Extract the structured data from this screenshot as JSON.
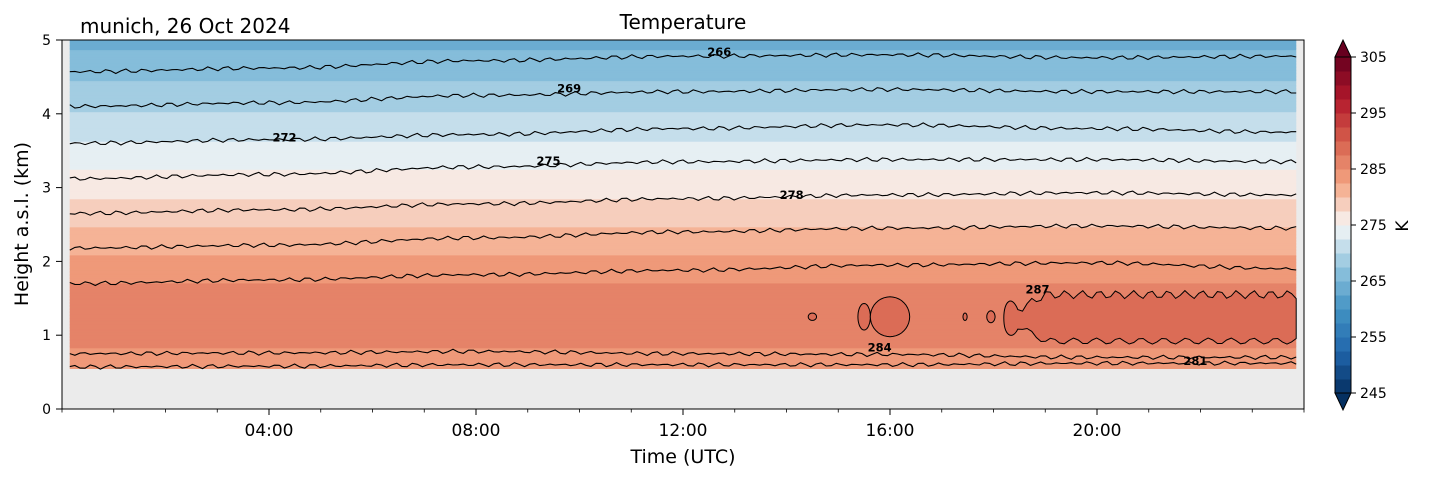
{
  "chart_data": {
    "type": "heatmap",
    "title": "Temperature",
    "subtitle": "munich, 26 Oct 2024",
    "xlabel": "Time (UTC)",
    "ylabel": "Height a.s.l. (km)",
    "xlim": [
      0,
      24
    ],
    "ylim": [
      0,
      5
    ],
    "x_ticks": [
      {
        "value": 4,
        "label": "04:00"
      },
      {
        "value": 8,
        "label": "08:00"
      },
      {
        "value": 12,
        "label": "12:00"
      },
      {
        "value": 16,
        "label": "16:00"
      },
      {
        "value": 20,
        "label": "20:00"
      }
    ],
    "y_ticks": [
      {
        "value": 0,
        "label": "0"
      },
      {
        "value": 1,
        "label": "1"
      },
      {
        "value": 2,
        "label": "2"
      },
      {
        "value": 3,
        "label": "3"
      },
      {
        "value": 4,
        "label": "4"
      },
      {
        "value": 5,
        "label": "5"
      }
    ],
    "data_extent": {
      "time_start": 0.15,
      "time_end": 23.85,
      "height_bottom": 0.55
    },
    "colorbar": {
      "label": "K",
      "min": 245,
      "max": 305,
      "ticks": [
        245,
        255,
        265,
        275,
        285,
        295,
        305
      ],
      "colormap": "RdBu_r",
      "extend": "both"
    },
    "no_data_color": "#ebebeb",
    "temperature_profile": [
      {
        "height": 0.55,
        "temperature": 283.0
      },
      {
        "height": 0.65,
        "temperature": 284.0
      },
      {
        "height": 0.8,
        "temperature": 284.8
      },
      {
        "height": 1.0,
        "temperature": 285.8
      },
      {
        "height": 1.25,
        "temperature": 286.3
      },
      {
        "height": 1.5,
        "temperature": 286.0
      },
      {
        "height": 1.75,
        "temperature": 284.8
      },
      {
        "height": 2.2,
        "temperature": 281.8
      },
      {
        "height": 2.65,
        "temperature": 278.8
      },
      {
        "height": 3.1,
        "temperature": 275.9
      },
      {
        "height": 3.6,
        "temperature": 272.7
      },
      {
        "height": 4.1,
        "temperature": 269.6
      },
      {
        "height": 4.6,
        "temperature": 266.6
      },
      {
        "height": 5.0,
        "temperature": 264.2
      }
    ],
    "contours": [
      {
        "level": 266,
        "heights": [
          4.57,
          4.62,
          4.72,
          4.78,
          4.8,
          4.76,
          4.78
        ]
      },
      {
        "level": 269,
        "heights": [
          4.1,
          4.15,
          4.25,
          4.3,
          4.33,
          4.3,
          4.3
        ]
      },
      {
        "level": 272,
        "heights": [
          3.6,
          3.65,
          3.72,
          3.8,
          3.85,
          3.8,
          3.75
        ]
      },
      {
        "level": 275,
        "heights": [
          3.12,
          3.18,
          3.28,
          3.35,
          3.38,
          3.38,
          3.35
        ]
      },
      {
        "level": 278,
        "heights": [
          2.65,
          2.7,
          2.78,
          2.85,
          2.9,
          2.93,
          2.9
        ]
      },
      {
        "level": 281,
        "heights": [
          2.18,
          2.22,
          2.32,
          2.4,
          2.45,
          2.48,
          2.45
        ]
      },
      {
        "level": 284,
        "heights": [
          1.7,
          1.75,
          1.82,
          1.88,
          1.95,
          1.98,
          1.9
        ]
      },
      {
        "level": 284,
        "heights": [
          0.75,
          0.76,
          0.78,
          0.75,
          0.74,
          0.7,
          0.7
        ]
      },
      {
        "level": 281,
        "heights": [
          0.57,
          0.58,
          0.6,
          0.6,
          0.6,
          0.62,
          0.62
        ]
      }
    ],
    "warm_core": {
      "level": 287,
      "time_start": 18.2,
      "time_end": 23.85,
      "height_bottom": 0.92,
      "height_top": 1.55,
      "islands": [
        {
          "time": 14.5,
          "height": 1.25,
          "time_halfwidth": 0.08,
          "height_halfwidth": 0.05
        },
        {
          "time": 15.5,
          "height": 1.25,
          "time_halfwidth": 0.12,
          "height_halfwidth": 0.18
        },
        {
          "time": 16.0,
          "height": 1.25,
          "time_halfwidth": 0.38,
          "height_halfwidth": 0.27
        },
        {
          "time": 17.45,
          "height": 1.25,
          "time_halfwidth": 0.04,
          "height_halfwidth": 0.05
        },
        {
          "time": 17.95,
          "height": 1.25,
          "time_halfwidth": 0.08,
          "height_halfwidth": 0.08
        }
      ]
    },
    "contour_labels": [
      {
        "text": "266",
        "time": 12.7,
        "height": 4.84
      },
      {
        "text": "269",
        "time": 9.8,
        "height": 4.34
      },
      {
        "text": "272",
        "time": 4.3,
        "height": 3.68
      },
      {
        "text": "275",
        "time": 9.4,
        "height": 3.36
      },
      {
        "text": "278",
        "time": 14.1,
        "height": 2.9
      },
      {
        "text": "287",
        "time": 18.85,
        "height": 1.62
      },
      {
        "text": "284",
        "time": 15.8,
        "height": 0.83
      },
      {
        "text": "281",
        "time": 21.9,
        "height": 0.65
      }
    ]
  }
}
